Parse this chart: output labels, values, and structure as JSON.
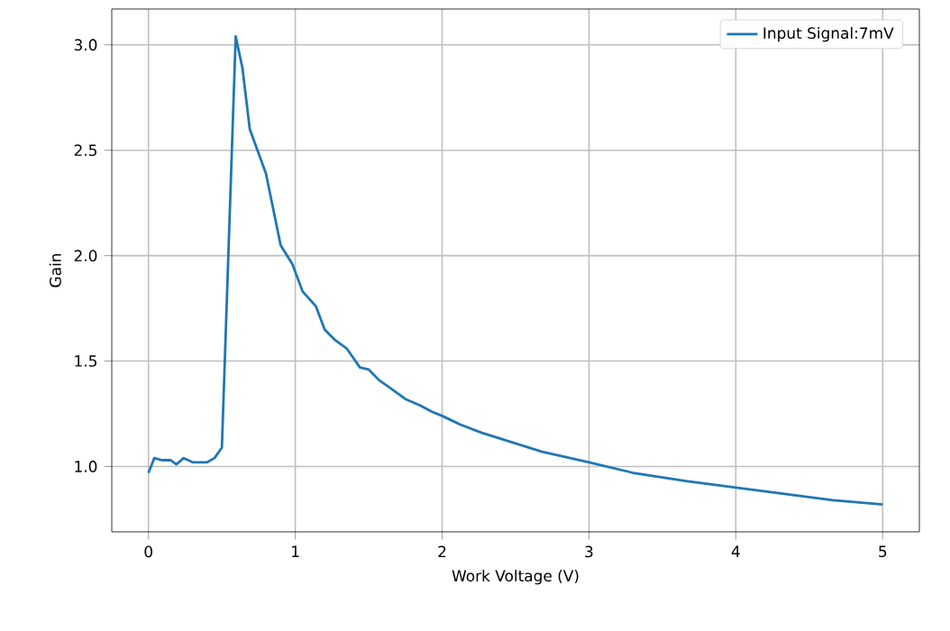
{
  "chart_data": {
    "type": "line",
    "xlabel": "Work Voltage (V)",
    "ylabel": "Gain",
    "xlim": [
      -0.25,
      5.25
    ],
    "ylim": [
      0.69,
      3.17
    ],
    "xticks": [
      0,
      1,
      2,
      3,
      4,
      5
    ],
    "yticks": [
      {
        "value": 1.0,
        "label": "1.0"
      },
      {
        "value": 1.5,
        "label": "1.5"
      },
      {
        "value": 2.0,
        "label": "2.0"
      },
      {
        "value": 2.5,
        "label": "2.5"
      },
      {
        "value": 3.0,
        "label": "3.0"
      }
    ],
    "grid": true,
    "legend": "top right",
    "series": [
      {
        "name": "Input Signal:7mV",
        "color": "#1f77b4",
        "x": [
          0,
          0.04,
          0.09,
          0.15,
          0.19,
          0.24,
          0.3,
          0.4,
          0.45,
          0.5,
          0.594,
          0.64,
          0.69,
          0.8,
          0.9,
          0.98,
          1.05,
          1.14,
          1.2,
          1.27,
          1.35,
          1.44,
          1.5,
          1.57,
          1.65,
          1.75,
          1.85,
          1.93,
          2.0,
          2.12,
          2.27,
          2.68,
          3.0,
          3.3,
          3.67,
          4.0,
          4.33,
          4.66,
          5.0
        ],
        "values": [
          0.97,
          1.04,
          1.03,
          1.03,
          1.01,
          1.04,
          1.02,
          1.02,
          1.04,
          1.09,
          3.04,
          2.89,
          2.6,
          2.39,
          2.05,
          1.96,
          1.83,
          1.76,
          1.65,
          1.6,
          1.56,
          1.47,
          1.46,
          1.41,
          1.37,
          1.32,
          1.29,
          1.26,
          1.24,
          1.2,
          1.16,
          1.07,
          1.02,
          0.97,
          0.93,
          0.9,
          0.87,
          0.84,
          0.82
        ]
      }
    ]
  }
}
